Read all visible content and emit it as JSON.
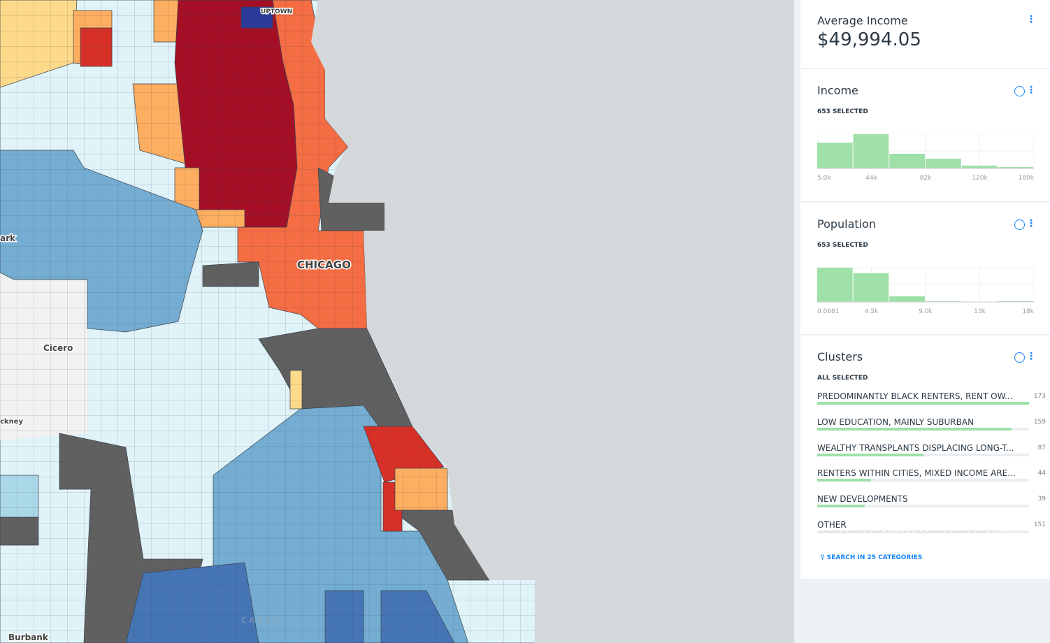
{
  "map": {
    "labels": [
      "UPTOWN",
      "CHICAGO",
      "Cicero",
      "ark",
      "ckney",
      "Burbank",
      "CARTO"
    ]
  },
  "average_income": {
    "title": "Average Income",
    "value": "$49,994.05"
  },
  "income": {
    "title": "Income",
    "status": "653 SELECTED",
    "bars": [
      190,
      252,
      108,
      72,
      21,
      10
    ],
    "axis_labels": [
      "5.0k",
      "44k",
      "82k",
      "120k",
      "160k"
    ]
  },
  "population": {
    "title": "Population",
    "status": "653 SELECTED",
    "bars": [
      320,
      268,
      52,
      6,
      0,
      7
    ],
    "axis_labels": [
      "0.0681",
      "4.5k",
      "9.0k",
      "13k",
      "18k"
    ]
  },
  "clusters": {
    "title": "Clusters",
    "status": "ALL SELECTED",
    "categories": [
      {
        "name": "PREDOMINANTLY BLACK RENTERS, RENT OW...",
        "count": 173
      },
      {
        "name": "LOW EDUCATION, MAINLY SUBURBAN",
        "count": 159
      },
      {
        "name": "WEALTHY TRANSPLANTS DISPLACING LONG-T...",
        "count": 87
      },
      {
        "name": "RENTERS WITHIN CITIES, MIXED INCOME ARE...",
        "count": 44
      },
      {
        "name": "NEW DEVELOPMENTS",
        "count": 39
      },
      {
        "name": "OTHER",
        "count": 151
      }
    ],
    "search": "SEARCH IN 25 CATEGORIES"
  }
}
